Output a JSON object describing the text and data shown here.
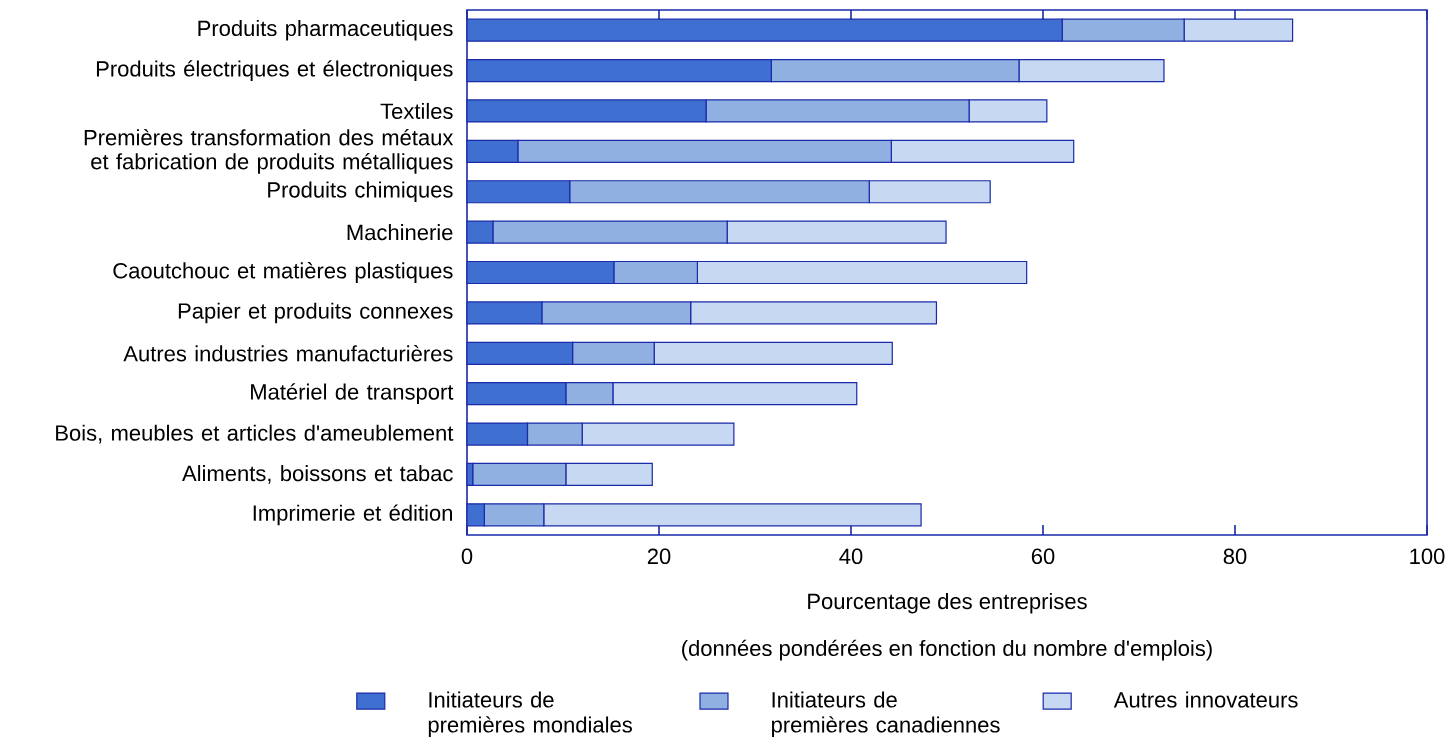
{
  "chart_data": {
    "type": "bar",
    "orientation": "horizontal",
    "stacked": true,
    "categories": [
      "Produits pharmaceutiques",
      "Produits électriques et électroniques",
      "Textiles",
      "Premières transformation des métaux et fabrication de produits métalliques",
      "Produits chimiques",
      "Machinerie",
      "Caoutchouc et matières plastiques",
      "Papier et produits connexes",
      "Autres industries manufacturières",
      "Matériel de transport",
      "Bois, meubles et articles d'ameublement",
      "Aliments, boissons et tabac",
      "Imprimerie et édition"
    ],
    "series": [
      {
        "name": "Initiateurs de premières mondiales",
        "color": "#3f6fd0",
        "values": [
          62.0,
          31.7,
          24.9,
          5.3,
          10.7,
          2.7,
          15.3,
          7.8,
          11.0,
          10.3,
          6.3,
          0.6,
          1.8
        ]
      },
      {
        "name": "Initiateurs de premières canadiennes",
        "color": "#8fb0e0",
        "values": [
          12.7,
          25.8,
          27.4,
          38.9,
          31.2,
          24.4,
          8.7,
          15.5,
          8.5,
          4.9,
          5.7,
          9.7,
          6.2
        ]
      },
      {
        "name": "Autres innovateurs",
        "color": "#c6d8f2",
        "values": [
          11.3,
          15.1,
          8.1,
          19.0,
          12.6,
          22.8,
          34.3,
          25.6,
          24.8,
          25.4,
          15.8,
          9.0,
          39.3
        ]
      }
    ],
    "xlim": [
      0,
      100
    ],
    "xticks": [
      0,
      20,
      40,
      60,
      80,
      100
    ],
    "xlabel": "Pourcentage des entreprises",
    "annotations": [
      "(données pondérées en fonction du nombre d'emplois)"
    ],
    "legend": "bottom"
  }
}
